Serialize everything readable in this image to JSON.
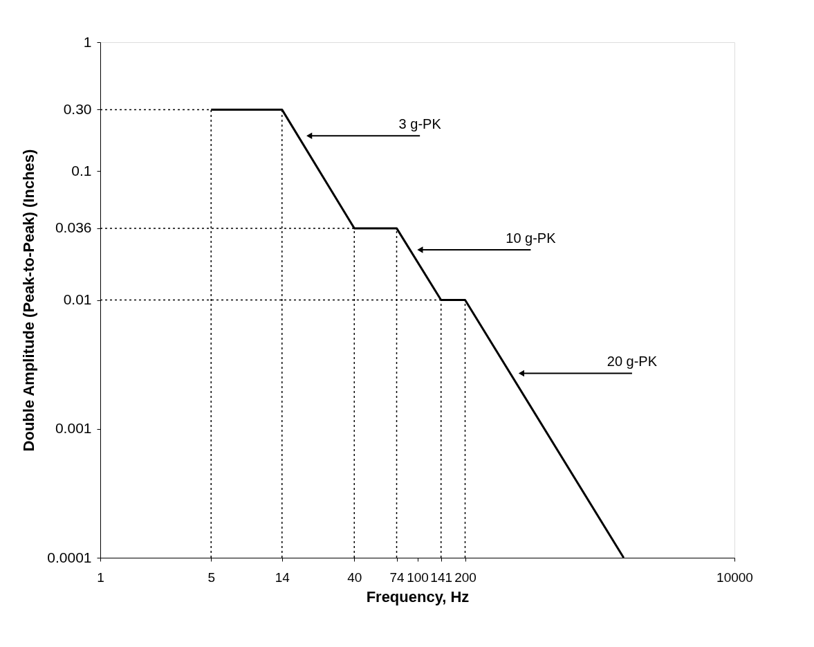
{
  "chart_data": {
    "type": "line",
    "xlabel": "Frequency, Hz",
    "ylabel": "Double Amplitude (Peak-to-Peak) (Inches)",
    "log": "xy",
    "grid": false,
    "marker": "none",
    "xlim": [
      1,
      10000
    ],
    "ylim": [
      0.0001,
      1
    ],
    "xticks": [
      1,
      5,
      14,
      40,
      74,
      {
        "value": 100,
        "label": "100"
      },
      141,
      200,
      10000
    ],
    "yticks": [
      0.0001,
      0.001,
      0.01,
      0.036,
      0.1,
      {
        "value": 0.3,
        "label": "0.30"
      },
      1
    ],
    "series": [
      {
        "color": "#000000",
        "line_style": "solid",
        "x": [
          5,
          14,
          40,
          74,
          141,
          200,
          2000
        ],
        "values": [
          0.3,
          0.3,
          0.036,
          0.036,
          0.01,
          0.01,
          0.0001
        ]
      },
      {
        "color": "#000000",
        "line_style": "dotted",
        "x": [
          1,
          5
        ],
        "values": [
          0.3,
          0.3
        ]
      },
      {
        "color": "#000000",
        "line_style": "dotted",
        "x": [
          1,
          40
        ],
        "values": [
          0.036,
          0.036
        ]
      },
      {
        "color": "#000000",
        "line_style": "dotted",
        "x": [
          1,
          141
        ],
        "values": [
          0.01,
          0.01
        ]
      },
      {
        "color": "#000000",
        "line_style": "dotted",
        "x": [
          5,
          5
        ],
        "values": [
          0.0001,
          0.3
        ]
      },
      {
        "color": "#000000",
        "line_style": "dotted",
        "x": [
          14,
          14
        ],
        "values": [
          0.0001,
          0.3
        ]
      },
      {
        "color": "#000000",
        "line_style": "dotted",
        "x": [
          40,
          40
        ],
        "values": [
          0.0001,
          0.036
        ]
      },
      {
        "color": "#000000",
        "line_style": "dotted",
        "x": [
          74,
          74
        ],
        "values": [
          0.0001,
          0.036
        ]
      },
      {
        "color": "#000000",
        "line_style": "dotted",
        "x": [
          141,
          141
        ],
        "values": [
          0.0001,
          0.01
        ]
      },
      {
        "color": "#000000",
        "line_style": "dotted",
        "x": [
          200,
          200
        ],
        "values": [
          0.0001,
          0.01
        ]
      }
    ],
    "annotations": [
      {
        "text": "3 g-PK",
        "x": 20.8,
        "y": 0.188
      },
      {
        "text": "10 g-PK",
        "x": 104,
        "y": 0.0245
      },
      {
        "text": "20 g-PK",
        "x": 453,
        "y": 0.0027
      }
    ]
  }
}
